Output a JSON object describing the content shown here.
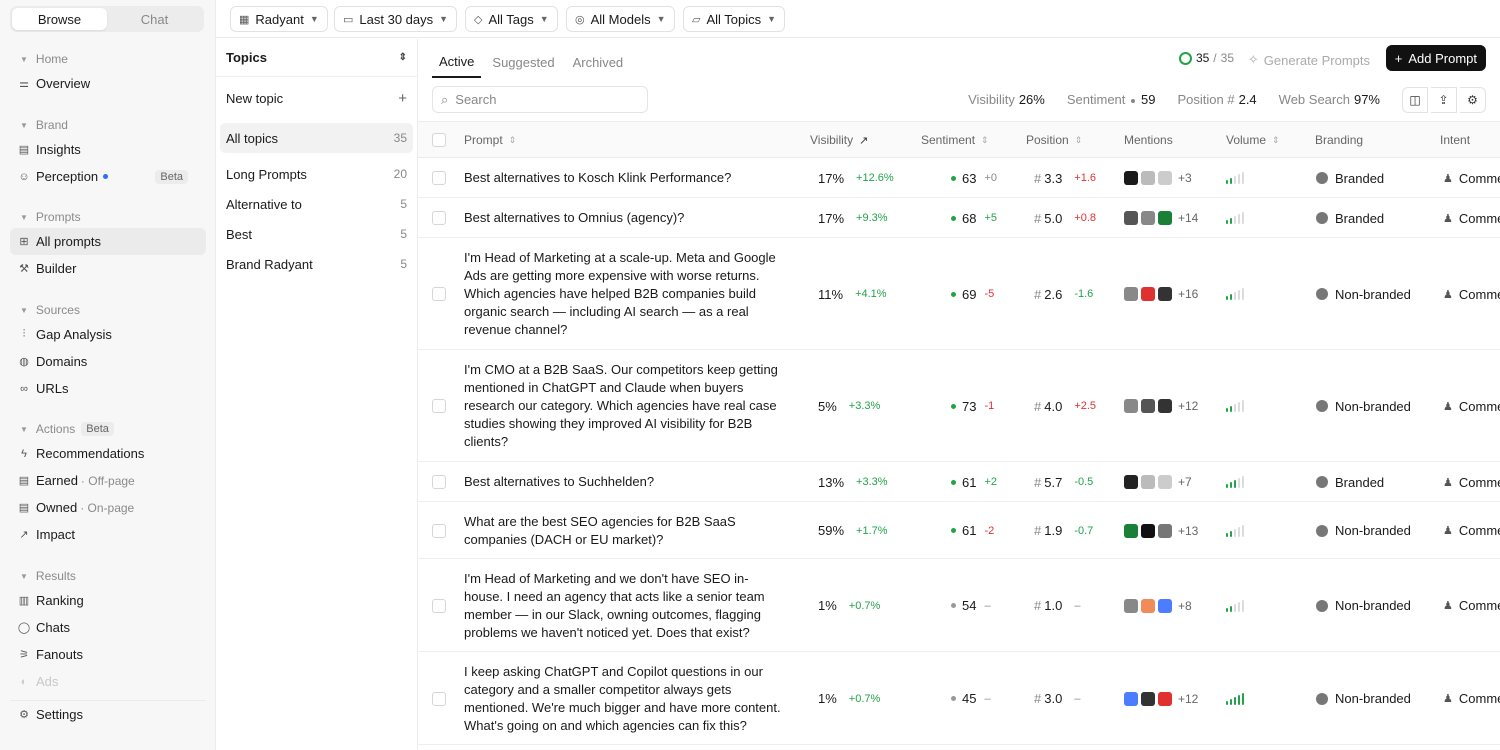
{
  "sidebar": {
    "mode_tabs": [
      "Browse",
      "Chat"
    ],
    "groups": [
      {
        "heading": "Home",
        "items": [
          {
            "label": "Overview"
          }
        ]
      },
      {
        "heading": "Brand",
        "items": [
          {
            "label": "Insights"
          },
          {
            "label": "Perception",
            "badge": "Beta"
          }
        ]
      },
      {
        "heading": "Prompts",
        "items": [
          {
            "label": "All prompts",
            "active": true
          },
          {
            "label": "Builder"
          }
        ]
      },
      {
        "heading": "Sources",
        "items": [
          {
            "label": "Gap Analysis"
          },
          {
            "label": "Domains"
          },
          {
            "label": "URLs"
          }
        ]
      },
      {
        "heading": "Actions",
        "heading_badge": "Beta",
        "items": [
          {
            "label": "Recommendations"
          },
          {
            "label": "Earned",
            "sub": "· Off-page"
          },
          {
            "label": "Owned",
            "sub": "· On-page"
          },
          {
            "label": "Impact"
          }
        ]
      },
      {
        "heading": "Results",
        "items": [
          {
            "label": "Ranking"
          },
          {
            "label": "Chats"
          },
          {
            "label": "Fanouts"
          },
          {
            "label": "Ads"
          }
        ]
      }
    ],
    "settings_label": "Settings"
  },
  "filters": {
    "brand": "Radyant",
    "date": "Last 30 days",
    "tags": "All Tags",
    "models": "All Models",
    "topics": "All Topics"
  },
  "topics_panel": {
    "title": "Topics",
    "new_topic": "New topic",
    "items": [
      {
        "label": "All topics",
        "count": "35",
        "active": true
      },
      {
        "label": "Long Prompts",
        "count": "20"
      },
      {
        "label": "Alternative to",
        "count": "5"
      },
      {
        "label": "Best",
        "count": "5"
      },
      {
        "label": "Brand Radyant",
        "count": "5"
      }
    ]
  },
  "main": {
    "tabs": [
      "Active",
      "Suggested",
      "Archived"
    ],
    "progress_done": "35",
    "progress_sep": "/",
    "progress_total": "35",
    "generate_label": "Generate Prompts",
    "add_label": "Add Prompt",
    "search_placeholder": "Search",
    "metrics": {
      "visibility_label": "Visibility",
      "visibility_value": "26%",
      "sentiment_label": "Sentiment",
      "sentiment_value": "59",
      "position_label": "Position #",
      "position_value": "2.4",
      "websearch_label": "Web Search",
      "websearch_value": "97%"
    }
  },
  "table": {
    "columns": [
      "Prompt",
      "Visibility",
      "Sentiment",
      "Position",
      "Mentions",
      "Volume",
      "Branding",
      "Intent"
    ],
    "rows": [
      {
        "lines": [
          "Best alternatives to Kosch Klink Performance?"
        ],
        "vis": "17%",
        "vis_d": "+12.6%",
        "sent": "63",
        "sent_d": "+0",
        "sent_dir": "neu",
        "pos": "3.3",
        "pos_d": "+1.6",
        "pos_dir": "neg",
        "mentions_more": "+3",
        "volume_level": 0.4,
        "branding": "Branded",
        "intent": "Comme"
      },
      {
        "lines": [
          "Best alternatives to Omnius (agency)?"
        ],
        "vis": "17%",
        "vis_d": "+9.3%",
        "sent": "68",
        "sent_d": "+5",
        "sent_dir": "pos",
        "pos": "5.0",
        "pos_d": "+0.8",
        "pos_dir": "neg",
        "mentions_more": "+14",
        "volume_level": 0.4,
        "branding": "Branded",
        "intent": "Comme"
      },
      {
        "lines": [
          "I'm Head of Marketing at a scale-up. Meta and Google",
          "Ads are getting more expensive with worse returns.",
          "Which agencies have helped B2B companies build",
          "organic search — including AI search — as a real",
          "revenue channel?"
        ],
        "vis": "11%",
        "vis_d": "+4.1%",
        "sent": "69",
        "sent_d": "-5",
        "sent_dir": "neg",
        "pos": "2.6",
        "pos_d": "-1.6",
        "pos_dir": "pos",
        "mentions_more": "+16",
        "volume_level": 0.4,
        "branding": "Non-branded",
        "intent": "Comme"
      },
      {
        "lines": [
          "I'm CMO at a B2B SaaS. Our competitors keep getting",
          "mentioned in ChatGPT and Claude when buyers",
          "research our category. Which agencies have real case",
          "studies showing they improved AI visibility for B2B",
          "clients?"
        ],
        "vis": "5%",
        "vis_d": "+3.3%",
        "sent": "73",
        "sent_d": "-1",
        "sent_dir": "neg",
        "pos": "4.0",
        "pos_d": "+2.5",
        "pos_dir": "neg",
        "mentions_more": "+12",
        "volume_level": 0.4,
        "branding": "Non-branded",
        "intent": "Comme"
      },
      {
        "lines": [
          "Best alternatives to Suchhelden?"
        ],
        "vis": "13%",
        "vis_d": "+3.3%",
        "sent": "61",
        "sent_d": "+2",
        "sent_dir": "pos",
        "pos": "5.7",
        "pos_d": "-0.5",
        "pos_dir": "pos",
        "mentions_more": "+7",
        "volume_level": 0.6,
        "branding": "Branded",
        "intent": "Comme"
      },
      {
        "lines": [
          "What are the best SEO agencies for B2B SaaS",
          "companies (DACH or EU market)?"
        ],
        "vis": "59%",
        "vis_d": "+1.7%",
        "sent": "61",
        "sent_d": "-2",
        "sent_dir": "neg",
        "pos": "1.9",
        "pos_d": "-0.7",
        "pos_dir": "pos",
        "mentions_more": "+13",
        "volume_level": 0.4,
        "branding": "Non-branded",
        "intent": "Comme"
      },
      {
        "lines": [
          "I'm Head of Marketing and we don't have SEO in-",
          "house. I need an agency that acts like a senior team",
          "member — in our Slack, owning outcomes, flagging",
          "problems we haven't noticed yet. Does that exist?"
        ],
        "vis": "1%",
        "vis_d": "+0.7%",
        "sent": "54",
        "sent_d": "–",
        "sent_dir": "neu",
        "pos": "1.0",
        "pos_d": "–",
        "pos_dir": "neu",
        "mentions_more": "+8",
        "volume_level": 0.4,
        "branding": "Non-branded",
        "intent": "Comme"
      },
      {
        "lines": [
          "I keep asking ChatGPT and Copilot questions in our",
          "category and a smaller competitor always gets",
          "mentioned. We're much bigger and have more content.",
          "What's going on and which agencies can fix this?"
        ],
        "vis": "1%",
        "vis_d": "+0.7%",
        "sent": "45",
        "sent_d": "–",
        "sent_dir": "neu",
        "pos": "3.0",
        "pos_d": "–",
        "pos_dir": "neu",
        "mentions_more": "+12",
        "volume_level": 1.0,
        "branding": "Non-branded",
        "intent": "Comme"
      }
    ]
  },
  "colors": {
    "accent": "#111111",
    "positive": "#22a34a",
    "negative": "#e03131",
    "beta_dot": "#2f6bff"
  }
}
